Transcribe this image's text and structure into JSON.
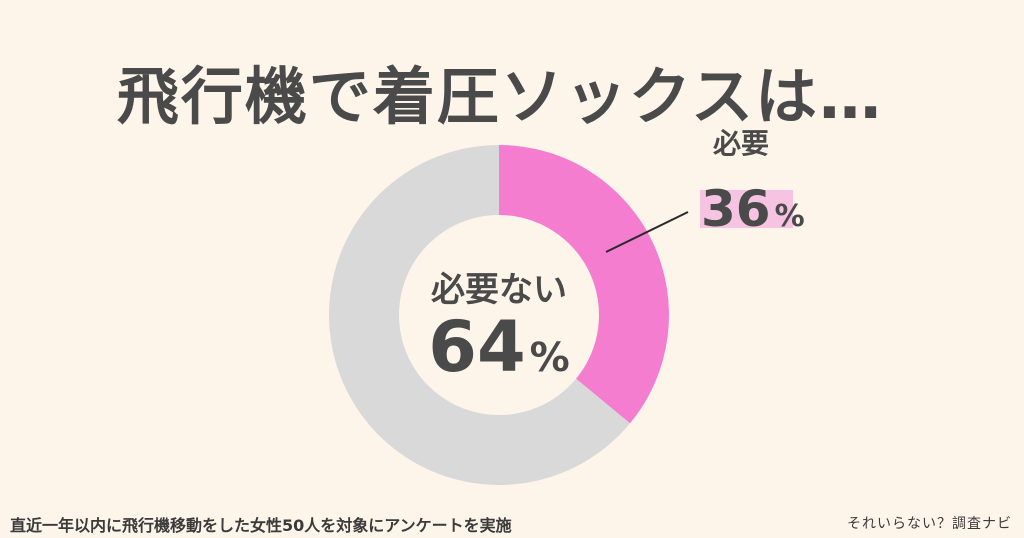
{
  "title": "飛行機で着圧ソックスは…",
  "chart_data": {
    "type": "pie",
    "donut": true,
    "categories": [
      "必要",
      "必要ない"
    ],
    "values": [
      36,
      64
    ],
    "value_suffix": "%",
    "colors": [
      "#f47dcf",
      "#d9d9d9"
    ],
    "highlight_color": "#f6c3e3"
  },
  "footnote": "直近一年以内に飛行機移動をした女性50人を対象にアンケートを実施",
  "credit": "それいらない？調査ナビ"
}
